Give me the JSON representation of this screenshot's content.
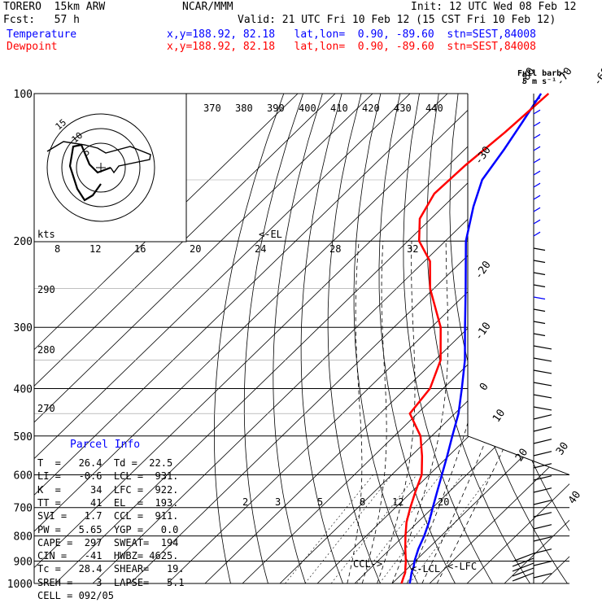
{
  "header": {
    "title_left": "TORERO  15km ARW",
    "org": "NCAR/MMM",
    "init": "Init: 12 UTC Wed 08 Feb 12",
    "fcst": "Fcst:   57 h",
    "valid": "Valid: 21 UTC Fri 10 Feb 12 (15 CST Fri 10 Feb 12)",
    "temp_label": "Temperature",
    "temp_info": "x,y=188.92, 82.18   lat,lon=  0.90, -89.60  stn=SEST,84008",
    "dew_label": "Dewpoint",
    "dew_info": "x,y=188.92, 82.18   lat,lon=  0.90, -89.60  stn=SEST,84008"
  },
  "full_barb": {
    "line1": "Full barb:",
    "line2": "5 m s⁻¹"
  },
  "parcel": {
    "title": "Parcel Info",
    "rows": [
      "T  =   26.4  Td =  22.5",
      "LI =   -0.6  LCL =  931.",
      "K  =     34  LFC =  922.",
      "TT =     41  EL  =  193.",
      "SVI =   1.7  CCL =  911.",
      "PW =   5.65  YGP =   0.0",
      "CAPE =  297  SWEAT=  194",
      "CIN =   -41  HWBZ= 4625.",
      "Tc =   28.4  SHEAR=   19.",
      "SREH =    3  LAPSE=   5.1",
      "CELL = 092/05"
    ]
  },
  "markers": {
    "ccl": "CCL->",
    "lcl": "<-LCL",
    "lfc": "<-LFC",
    "el": "<-EL"
  },
  "colors": {
    "temperature": "#0000ff",
    "dewpoint": "#ff0000",
    "grid": "#000000"
  },
  "chart_data": {
    "type": "line",
    "title": "",
    "ylabel": "",
    "xlabel": "",
    "pressure_ticks": [
      100,
      200,
      300,
      400,
      500,
      600,
      700,
      800,
      900,
      1000
    ],
    "pressure_labels": [
      "100",
      "200",
      "300",
      "400",
      "500",
      "600",
      "700",
      "800",
      "900",
      "1000"
    ],
    "isotherm_labels_top": [
      "-80",
      "-70",
      "-60",
      "-50",
      "-40"
    ],
    "isotherm_labels_right": [
      "-30",
      "-20",
      "-10",
      "0",
      "10",
      "20",
      "30",
      "40"
    ],
    "theta_labels": [
      "370",
      "380",
      "390",
      "400",
      "410",
      "420",
      "430",
      "440"
    ],
    "theta_labels_left": [
      "290",
      "280",
      "270"
    ],
    "mixing_ratio_labels": [
      "2",
      "3",
      "5",
      "8",
      "12",
      "20"
    ],
    "hodograph_speed_labels": [
      "8",
      "12",
      "16",
      "20",
      "24",
      "28",
      "32"
    ],
    "hodograph_units": "kts",
    "hodograph_ring_labels": [
      "15",
      "10",
      "5"
    ],
    "series": [
      {
        "name": "Temperature",
        "color": "#0000ff",
        "p": [
          1000,
          975,
          950,
          925,
          900,
          850,
          800,
          750,
          700,
          650,
          600,
          550,
          500,
          450,
          400,
          350,
          300,
          250,
          200,
          170,
          150,
          130,
          115,
          100
        ],
        "t": [
          24.7,
          23.5,
          22.2,
          21.2,
          19.8,
          17.5,
          15.5,
          13.0,
          10.0,
          6.8,
          3.4,
          -0.3,
          -4.5,
          -9.0,
          -15.0,
          -22.0,
          -31.0,
          -41.5,
          -54.5,
          -62.0,
          -67.0,
          -69.5,
          -72.0,
          -75.0
        ]
      },
      {
        "name": "Dewpoint",
        "color": "#ff0000",
        "p": [
          1000,
          975,
          950,
          925,
          900,
          850,
          800,
          750,
          700,
          650,
          600,
          550,
          500,
          450,
          400,
          350,
          300,
          250,
          220,
          200,
          180,
          160,
          140,
          120,
          100
        ],
        "t": [
          22.5,
          21.5,
          20.5,
          19.0,
          17.5,
          14.0,
          10.5,
          7.0,
          4.0,
          1.0,
          -2.0,
          -7.0,
          -13.0,
          -22.0,
          -23.5,
          -28.5,
          -37.5,
          -51.0,
          -58.5,
          -67.0,
          -73.0,
          -76.0,
          -75.5,
          -74.0,
          -73.0
        ]
      }
    ],
    "wind_barbs_right": true
  }
}
